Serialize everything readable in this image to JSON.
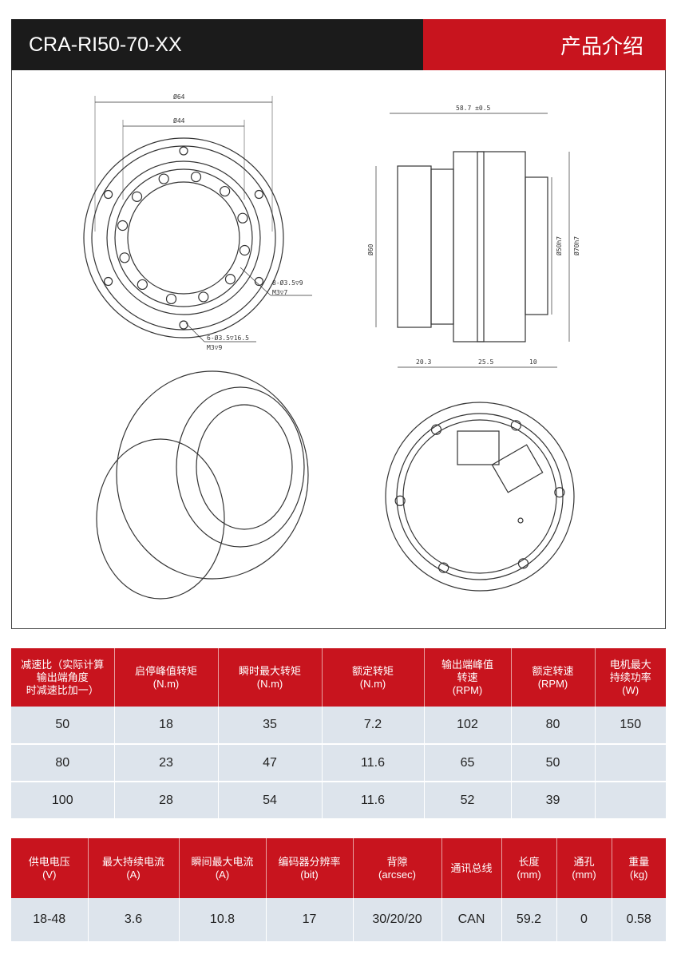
{
  "header": {
    "model": "CRA-RI50-70-XX",
    "section": "产品介绍"
  },
  "drawing": {
    "d64": "Ø64",
    "d44": "Ø44",
    "len": "58.7 ±0.5",
    "d60": "Ø60",
    "d50": "Ø50h7",
    "d70": "Ø70h7",
    "l1": "20.3",
    "l2": "25.5",
    "l3": "10",
    "hole1a": "8-Ø3.5▽9",
    "hole1b": "M3▽7",
    "hole2a": "6-Ø3.5▽16.5",
    "hole2b": "M3▽9"
  },
  "table1": {
    "headers": [
      [
        "减速比（实际计算",
        "输出端角度",
        "时减速比加一）"
      ],
      [
        "启停峰值转矩",
        "(N.m)"
      ],
      [
        "瞬时最大转矩",
        "(N.m)"
      ],
      [
        "额定转矩",
        "(N.m)"
      ],
      [
        "输出端峰值",
        "转速",
        "(RPM)"
      ],
      [
        "额定转速",
        "(RPM)"
      ],
      [
        "电机最大",
        "持续功率",
        "(W)"
      ]
    ],
    "rows": [
      [
        "50",
        "18",
        "35",
        "7.2",
        "102",
        "80",
        "150"
      ],
      [
        "80",
        "23",
        "47",
        "11.6",
        "65",
        "50",
        ""
      ],
      [
        "100",
        "28",
        "54",
        "11.6",
        "52",
        "39",
        ""
      ]
    ]
  },
  "table2": {
    "headers": [
      [
        "供电电压",
        "(V)"
      ],
      [
        "最大持续电流",
        "(A)"
      ],
      [
        "瞬间最大电流",
        "(A)"
      ],
      [
        "编码器分辨率",
        "(bit)"
      ],
      [
        "背隙",
        "(arcsec)"
      ],
      [
        "通讯总线"
      ],
      [
        "长度",
        "(mm)"
      ],
      [
        "通孔",
        "(mm)"
      ],
      [
        "重量",
        "(kg)"
      ]
    ],
    "rows": [
      [
        "18-48",
        "3.6",
        "10.8",
        "17",
        "30/20/20",
        "CAN",
        "59.2",
        "0",
        "0.58"
      ]
    ]
  },
  "colors": {
    "red": "#c8141e",
    "dark": "#1b1b1b",
    "row": "#dde4ec"
  }
}
